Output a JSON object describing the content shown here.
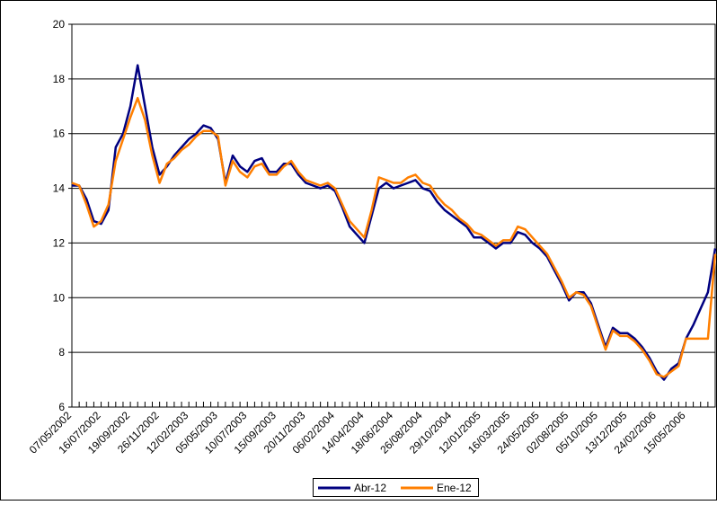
{
  "chart_data": {
    "type": "line",
    "categories": [
      "07/05/2002",
      null,
      null,
      null,
      "16/07/2002",
      null,
      null,
      null,
      "19/09/2002",
      null,
      null,
      null,
      "26/11/2002",
      null,
      null,
      null,
      "12/02/2003",
      null,
      null,
      null,
      "05/05/2003",
      null,
      null,
      null,
      "10/07/2003",
      null,
      null,
      null,
      "15/09/2003",
      null,
      null,
      null,
      "20/11/2003",
      null,
      null,
      null,
      "06/02/2004",
      null,
      null,
      null,
      "14/04/2004",
      null,
      null,
      null,
      "18/06/2004",
      null,
      null,
      null,
      "26/08/2004",
      null,
      null,
      null,
      "29/10/2004",
      null,
      null,
      null,
      "12/01/2005",
      null,
      null,
      null,
      "16/03/2005",
      null,
      null,
      null,
      "24/05/2005",
      null,
      null,
      null,
      "02/08/2005",
      null,
      null,
      null,
      "05/10/2005",
      null,
      null,
      null,
      "13/12/2005",
      null,
      null,
      null,
      "24/02/2006",
      null,
      null,
      null,
      "15/05/2006",
      null,
      null,
      null,
      null
    ],
    "series": [
      {
        "name": "Abr-12",
        "color": "#000080",
        "values": [
          14.1,
          14.1,
          13.6,
          12.8,
          12.7,
          13.2,
          15.5,
          16.0,
          17.0,
          18.5,
          17.0,
          15.5,
          14.5,
          14.8,
          15.2,
          15.5,
          15.8,
          16.0,
          16.3,
          16.2,
          15.8,
          14.2,
          15.2,
          14.8,
          14.6,
          15.0,
          15.1,
          14.6,
          14.6,
          14.9,
          14.9,
          14.5,
          14.2,
          14.1,
          14.0,
          14.1,
          13.9,
          13.3,
          12.6,
          12.3,
          12.0,
          13.0,
          14.0,
          14.2,
          14.0,
          14.1,
          14.2,
          14.3,
          14.0,
          13.9,
          13.5,
          13.2,
          13.0,
          12.8,
          12.6,
          12.2,
          12.2,
          12.0,
          11.8,
          12.0,
          12.0,
          12.4,
          12.3,
          12.0,
          11.8,
          11.5,
          11.0,
          10.5,
          9.9,
          10.2,
          10.2,
          9.8,
          9.0,
          8.2,
          8.9,
          8.7,
          8.7,
          8.5,
          8.2,
          7.8,
          7.3,
          7.0,
          7.4,
          7.6,
          8.5,
          9.0,
          9.6,
          10.2,
          11.8
        ]
      },
      {
        "name": "Ene-12",
        "color": "#ff7f00",
        "values": [
          14.2,
          14.1,
          13.4,
          12.6,
          12.8,
          13.4,
          15.0,
          15.8,
          16.6,
          17.3,
          16.5,
          15.2,
          14.2,
          14.9,
          15.1,
          15.4,
          15.6,
          15.9,
          16.1,
          16.1,
          15.9,
          14.1,
          15.0,
          14.6,
          14.4,
          14.8,
          14.9,
          14.5,
          14.5,
          14.8,
          15.0,
          14.6,
          14.3,
          14.2,
          14.1,
          14.2,
          14.0,
          13.4,
          12.8,
          12.5,
          12.2,
          13.2,
          14.4,
          14.3,
          14.2,
          14.2,
          14.4,
          14.5,
          14.2,
          14.1,
          13.7,
          13.4,
          13.2,
          12.9,
          12.7,
          12.4,
          12.3,
          12.1,
          11.9,
          12.1,
          12.1,
          12.6,
          12.5,
          12.2,
          11.9,
          11.6,
          11.1,
          10.6,
          10.0,
          10.2,
          10.1,
          9.7,
          8.9,
          8.1,
          8.8,
          8.6,
          8.6,
          8.4,
          8.1,
          7.7,
          7.2,
          7.1,
          7.3,
          7.5,
          8.5,
          8.5,
          8.5,
          8.5,
          11.6
        ]
      }
    ],
    "ylim": [
      6,
      20
    ],
    "yticks": [
      6,
      8,
      10,
      12,
      14,
      16,
      18,
      20
    ],
    "grid": true,
    "legend": "bottom"
  }
}
